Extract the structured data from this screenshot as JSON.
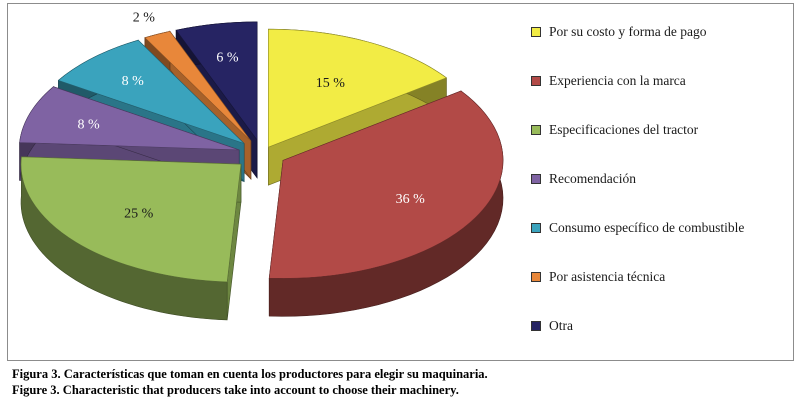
{
  "chart_data": {
    "type": "pie",
    "style": "3d-exploded",
    "slices": [
      {
        "label": "Por su costo y forma de pago",
        "value": 15,
        "display": "15 %",
        "color": "#f2ec45"
      },
      {
        "label": "Experiencia con la marca",
        "value": 36,
        "display": "36 %",
        "color": "#b24a47"
      },
      {
        "label": "Especificaciones del tractor",
        "value": 25,
        "display": "25 %",
        "color": "#98bb5a"
      },
      {
        "label": "Recomendación",
        "value": 8,
        "display": "8 %",
        "color": "#7f63a3"
      },
      {
        "label": "Consumo específico de combustible",
        "value": 8,
        "display": "8 %",
        "color": "#3aa3bd"
      },
      {
        "label": "Por asistencia técnica",
        "value": 2,
        "display": "2 %",
        "color": "#e8873a"
      },
      {
        "label": "Otra",
        "value": 6,
        "display": "6 %",
        "color": "#262463"
      }
    ],
    "legend_position": "right"
  },
  "caption": {
    "line1": "Figura 3. Características que toman en cuenta los productores para elegir su maquinaria.",
    "line2": "Figure 3. Characteristic that producers take into account to choose their machinery."
  }
}
